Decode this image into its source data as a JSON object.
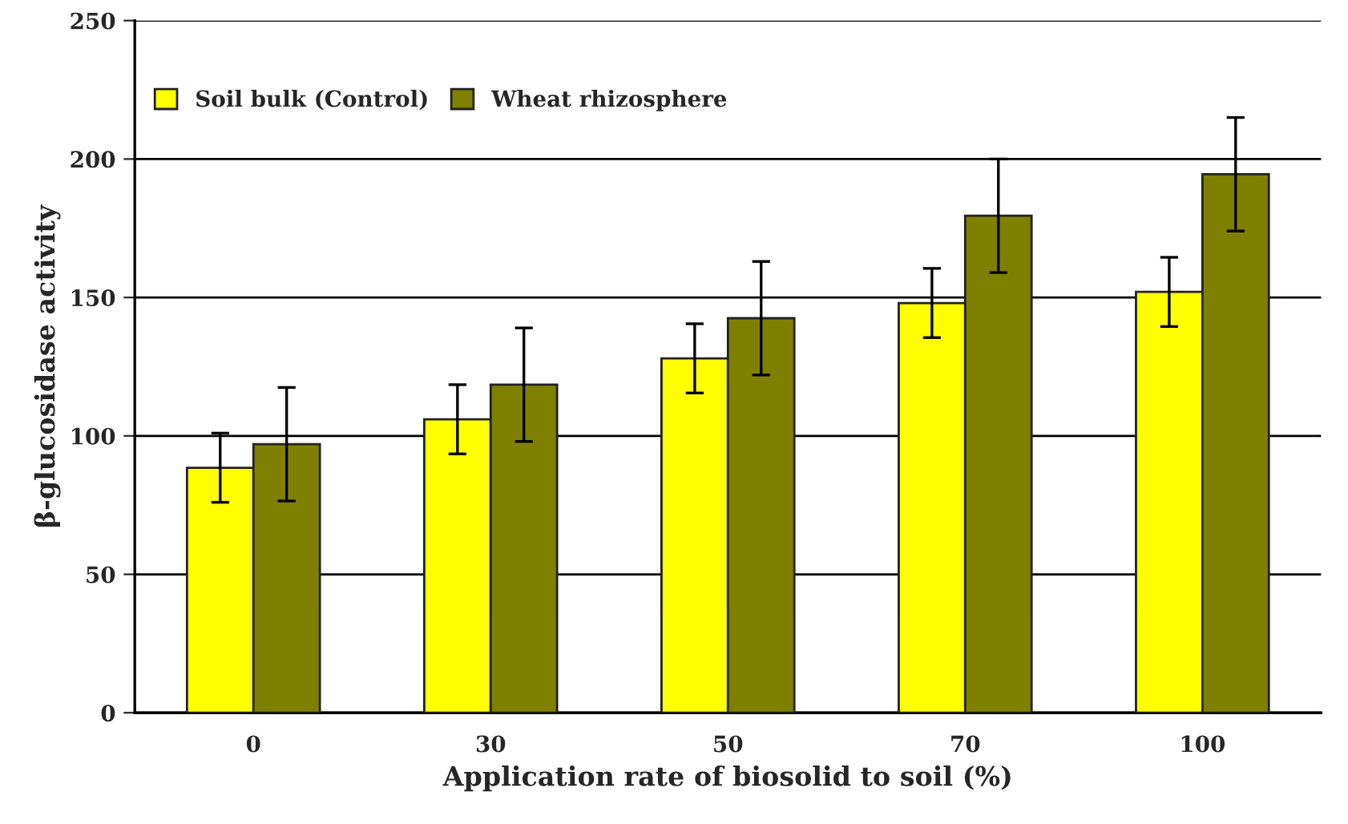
{
  "chart_data": {
    "type": "bar",
    "xlabel": "Application rate of biosolid to soil (%)",
    "ylabel": "β-glucosidase activity",
    "categories": [
      "0",
      "30",
      "50",
      "70",
      "100"
    ],
    "series": [
      {
        "name": "Soil bulk (Control)",
        "color": "#ffff00",
        "values": [
          88.5,
          106,
          128,
          148,
          152
        ],
        "errors": [
          12.5,
          12.5,
          12.5,
          12.5,
          12.5
        ]
      },
      {
        "name": "Wheat rhizosphere",
        "color": "#808000",
        "values": [
          97,
          118.5,
          142.5,
          179.5,
          194.5
        ],
        "errors": [
          20.5,
          20.5,
          20.5,
          20.5,
          20.5
        ]
      }
    ],
    "ylim": [
      0,
      250
    ],
    "yticks": [
      0,
      50,
      100,
      150,
      200,
      250
    ],
    "grid": "y",
    "legend": "top left"
  }
}
